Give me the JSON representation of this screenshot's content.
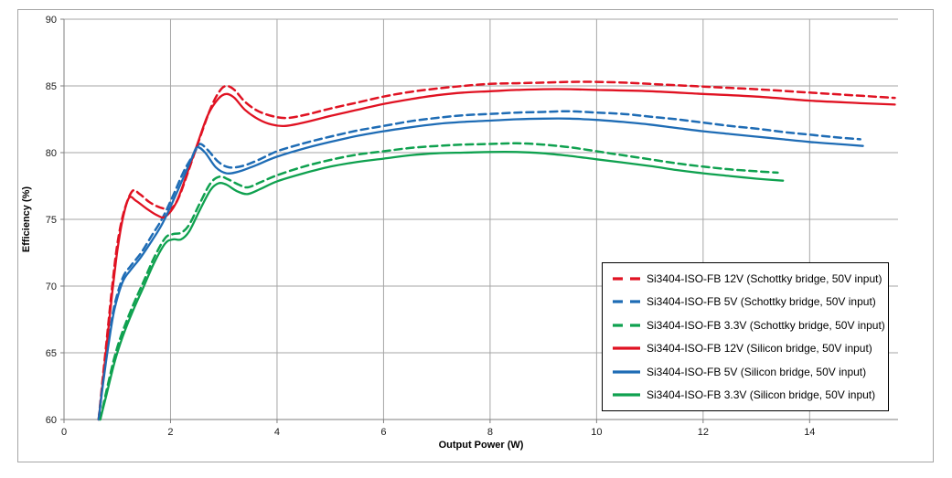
{
  "figure": {
    "background": "#FFFFFF",
    "frame_border_color": "#A6A6A6"
  },
  "chart_data": {
    "type": "line",
    "title": "",
    "xlabel": "Output Power (W)",
    "ylabel": "Efficiency (%)",
    "xlim": [
      0,
      15.66
    ],
    "ylim": [
      60,
      90
    ],
    "x_ticks": [
      0,
      2,
      4,
      6,
      8,
      10,
      12,
      14
    ],
    "y_ticks": [
      60,
      65,
      70,
      75,
      80,
      85,
      90
    ],
    "grid": true,
    "gridline_color": "#A6A6A6",
    "axis_color": "#7F7F7F",
    "tick_label_color": "#1A1A1A",
    "legend_position": "right-middle",
    "series": [
      {
        "label": "Si3404-ISO-FB 12V (Schottky bridge, 50V input)",
        "color": "#E01222",
        "dash": true,
        "points": [
          [
            0.65,
            60
          ],
          [
            0.72,
            62.8
          ],
          [
            0.8,
            65.9
          ],
          [
            0.9,
            69.8
          ],
          [
            1.0,
            73.1
          ],
          [
            1.12,
            75.5
          ],
          [
            1.28,
            77.1
          ],
          [
            1.42,
            76.9
          ],
          [
            1.6,
            76.3
          ],
          [
            1.8,
            75.9
          ],
          [
            2.0,
            75.8
          ],
          [
            2.15,
            76.6
          ],
          [
            2.35,
            78.8
          ],
          [
            2.55,
            81.1
          ],
          [
            2.75,
            83.3
          ],
          [
            2.92,
            84.6
          ],
          [
            3.05,
            85.0
          ],
          [
            3.2,
            84.7
          ],
          [
            3.4,
            83.8
          ],
          [
            3.65,
            83.1
          ],
          [
            3.95,
            82.7
          ],
          [
            4.2,
            82.6
          ],
          [
            4.55,
            82.85
          ],
          [
            5.0,
            83.3
          ],
          [
            5.5,
            83.75
          ],
          [
            6.0,
            84.2
          ],
          [
            6.5,
            84.55
          ],
          [
            7.0,
            84.8
          ],
          [
            7.5,
            85.0
          ],
          [
            8.0,
            85.15
          ],
          [
            8.5,
            85.2
          ],
          [
            9.0,
            85.25
          ],
          [
            9.5,
            85.3
          ],
          [
            10.0,
            85.3
          ],
          [
            10.5,
            85.25
          ],
          [
            11.0,
            85.15
          ],
          [
            12.0,
            84.95
          ],
          [
            13.0,
            84.75
          ],
          [
            14.0,
            84.5
          ],
          [
            15.0,
            84.25
          ],
          [
            15.6,
            84.1
          ]
        ]
      },
      {
        "label": "Si3404-ISO-FB 5V (Schottky bridge, 50V input)",
        "color": "#1E6CB5",
        "dash": true,
        "points": [
          [
            0.65,
            60
          ],
          [
            0.75,
            63.5
          ],
          [
            0.85,
            66.3
          ],
          [
            0.95,
            68.6
          ],
          [
            1.1,
            70.6
          ],
          [
            1.25,
            71.5
          ],
          [
            1.45,
            72.5
          ],
          [
            1.65,
            73.8
          ],
          [
            1.85,
            75.1
          ],
          [
            2.05,
            76.8
          ],
          [
            2.25,
            78.6
          ],
          [
            2.45,
            80.0
          ],
          [
            2.55,
            80.65
          ],
          [
            2.7,
            80.2
          ],
          [
            2.9,
            79.3
          ],
          [
            3.1,
            78.9
          ],
          [
            3.35,
            79.0
          ],
          [
            3.65,
            79.45
          ],
          [
            4.0,
            80.1
          ],
          [
            4.5,
            80.7
          ],
          [
            5.0,
            81.2
          ],
          [
            5.5,
            81.65
          ],
          [
            6.0,
            82.0
          ],
          [
            6.5,
            82.35
          ],
          [
            7.0,
            82.6
          ],
          [
            7.5,
            82.8
          ],
          [
            8.0,
            82.9
          ],
          [
            8.5,
            83.0
          ],
          [
            9.0,
            83.05
          ],
          [
            9.5,
            83.1
          ],
          [
            10.0,
            83.0
          ],
          [
            10.5,
            82.9
          ],
          [
            11.0,
            82.7
          ],
          [
            11.5,
            82.5
          ],
          [
            12.0,
            82.25
          ],
          [
            12.5,
            82.0
          ],
          [
            13.0,
            81.8
          ],
          [
            13.5,
            81.55
          ],
          [
            14.0,
            81.35
          ],
          [
            14.5,
            81.15
          ],
          [
            14.95,
            81.0
          ]
        ]
      },
      {
        "label": "Si3404-ISO-FB 3.3V (Schottky bridge, 50V input)",
        "color": "#0FA14F",
        "dash": true,
        "points": [
          [
            0.68,
            60
          ],
          [
            0.8,
            62.2
          ],
          [
            0.95,
            64.7
          ],
          [
            1.1,
            66.6
          ],
          [
            1.3,
            68.6
          ],
          [
            1.5,
            70.4
          ],
          [
            1.7,
            72.2
          ],
          [
            1.9,
            73.6
          ],
          [
            2.05,
            73.9
          ],
          [
            2.2,
            74.0
          ],
          [
            2.35,
            74.6
          ],
          [
            2.55,
            76.2
          ],
          [
            2.75,
            77.7
          ],
          [
            2.92,
            78.2
          ],
          [
            3.08,
            78.0
          ],
          [
            3.28,
            77.6
          ],
          [
            3.45,
            77.4
          ],
          [
            3.7,
            77.8
          ],
          [
            4.0,
            78.3
          ],
          [
            4.5,
            78.95
          ],
          [
            5.0,
            79.45
          ],
          [
            5.5,
            79.85
          ],
          [
            6.0,
            80.1
          ],
          [
            6.5,
            80.35
          ],
          [
            7.0,
            80.5
          ],
          [
            7.5,
            80.6
          ],
          [
            8.0,
            80.65
          ],
          [
            8.5,
            80.7
          ],
          [
            9.0,
            80.6
          ],
          [
            9.5,
            80.4
          ],
          [
            10.0,
            80.1
          ],
          [
            10.5,
            79.8
          ],
          [
            11.0,
            79.5
          ],
          [
            11.5,
            79.2
          ],
          [
            12.0,
            78.95
          ],
          [
            12.5,
            78.75
          ],
          [
            13.0,
            78.6
          ],
          [
            13.4,
            78.5
          ]
        ]
      },
      {
        "label": "Si3404-ISO-FB 12V (Silicon bridge, 50V input)",
        "color": "#E01222",
        "dash": false,
        "points": [
          [
            0.65,
            60
          ],
          [
            0.72,
            62.5
          ],
          [
            0.8,
            65.5
          ],
          [
            0.9,
            69.3
          ],
          [
            1.0,
            72.6
          ],
          [
            1.1,
            75.0
          ],
          [
            1.22,
            76.6
          ],
          [
            1.35,
            76.4
          ],
          [
            1.55,
            75.8
          ],
          [
            1.75,
            75.3
          ],
          [
            1.9,
            75.2
          ],
          [
            2.1,
            76.2
          ],
          [
            2.3,
            78.3
          ],
          [
            2.5,
            80.6
          ],
          [
            2.7,
            82.8
          ],
          [
            2.9,
            84.05
          ],
          [
            3.05,
            84.4
          ],
          [
            3.2,
            84.1
          ],
          [
            3.4,
            83.2
          ],
          [
            3.65,
            82.5
          ],
          [
            3.9,
            82.1
          ],
          [
            4.15,
            82.0
          ],
          [
            4.5,
            82.25
          ],
          [
            5.0,
            82.75
          ],
          [
            5.5,
            83.2
          ],
          [
            6.0,
            83.65
          ],
          [
            6.5,
            84.0
          ],
          [
            7.0,
            84.3
          ],
          [
            7.5,
            84.5
          ],
          [
            8.0,
            84.6
          ],
          [
            8.5,
            84.7
          ],
          [
            9.0,
            84.75
          ],
          [
            9.5,
            84.75
          ],
          [
            10.0,
            84.7
          ],
          [
            11.0,
            84.6
          ],
          [
            12.0,
            84.4
          ],
          [
            13.0,
            84.2
          ],
          [
            14.0,
            83.9
          ],
          [
            15.0,
            83.7
          ],
          [
            15.6,
            83.6
          ]
        ]
      },
      {
        "label": "Si3404-ISO-FB 5V (Silicon bridge, 50V input)",
        "color": "#1E6CB5",
        "dash": false,
        "points": [
          [
            0.65,
            60
          ],
          [
            0.75,
            63.2
          ],
          [
            0.85,
            66.0
          ],
          [
            0.95,
            68.3
          ],
          [
            1.1,
            70.3
          ],
          [
            1.25,
            71.2
          ],
          [
            1.45,
            72.2
          ],
          [
            1.65,
            73.4
          ],
          [
            1.85,
            74.7
          ],
          [
            2.05,
            76.4
          ],
          [
            2.25,
            78.2
          ],
          [
            2.4,
            79.6
          ],
          [
            2.5,
            80.4
          ],
          [
            2.65,
            80.0
          ],
          [
            2.85,
            78.9
          ],
          [
            3.05,
            78.45
          ],
          [
            3.3,
            78.6
          ],
          [
            3.6,
            79.05
          ],
          [
            4.0,
            79.7
          ],
          [
            4.5,
            80.3
          ],
          [
            5.0,
            80.8
          ],
          [
            5.5,
            81.25
          ],
          [
            6.0,
            81.6
          ],
          [
            6.5,
            81.9
          ],
          [
            7.0,
            82.15
          ],
          [
            7.5,
            82.3
          ],
          [
            8.0,
            82.4
          ],
          [
            8.5,
            82.5
          ],
          [
            9.0,
            82.55
          ],
          [
            9.5,
            82.55
          ],
          [
            10.0,
            82.45
          ],
          [
            10.5,
            82.3
          ],
          [
            11.0,
            82.1
          ],
          [
            11.5,
            81.85
          ],
          [
            12.0,
            81.6
          ],
          [
            12.5,
            81.4
          ],
          [
            13.0,
            81.2
          ],
          [
            13.5,
            81.0
          ],
          [
            14.0,
            80.8
          ],
          [
            14.5,
            80.65
          ],
          [
            15.0,
            80.5
          ]
        ]
      },
      {
        "label": "Si3404-ISO-FB 3.3V (Silicon bridge, 50V input)",
        "color": "#0FA14F",
        "dash": false,
        "points": [
          [
            0.68,
            60
          ],
          [
            0.8,
            61.9
          ],
          [
            0.95,
            64.3
          ],
          [
            1.1,
            66.2
          ],
          [
            1.3,
            68.2
          ],
          [
            1.5,
            70.0
          ],
          [
            1.7,
            71.8
          ],
          [
            1.9,
            73.2
          ],
          [
            2.05,
            73.5
          ],
          [
            2.2,
            73.5
          ],
          [
            2.35,
            74.1
          ],
          [
            2.55,
            75.7
          ],
          [
            2.75,
            77.2
          ],
          [
            2.9,
            77.7
          ],
          [
            3.05,
            77.6
          ],
          [
            3.25,
            77.1
          ],
          [
            3.45,
            76.9
          ],
          [
            3.7,
            77.3
          ],
          [
            4.0,
            77.85
          ],
          [
            4.5,
            78.45
          ],
          [
            5.0,
            78.95
          ],
          [
            5.5,
            79.3
          ],
          [
            6.0,
            79.55
          ],
          [
            6.5,
            79.8
          ],
          [
            7.0,
            79.95
          ],
          [
            7.5,
            80.0
          ],
          [
            8.0,
            80.05
          ],
          [
            8.5,
            80.05
          ],
          [
            9.0,
            79.95
          ],
          [
            9.5,
            79.75
          ],
          [
            10.0,
            79.5
          ],
          [
            10.5,
            79.25
          ],
          [
            11.0,
            79.0
          ],
          [
            11.5,
            78.7
          ],
          [
            12.0,
            78.45
          ],
          [
            12.5,
            78.25
          ],
          [
            13.0,
            78.05
          ],
          [
            13.5,
            77.9
          ]
        ]
      }
    ]
  }
}
